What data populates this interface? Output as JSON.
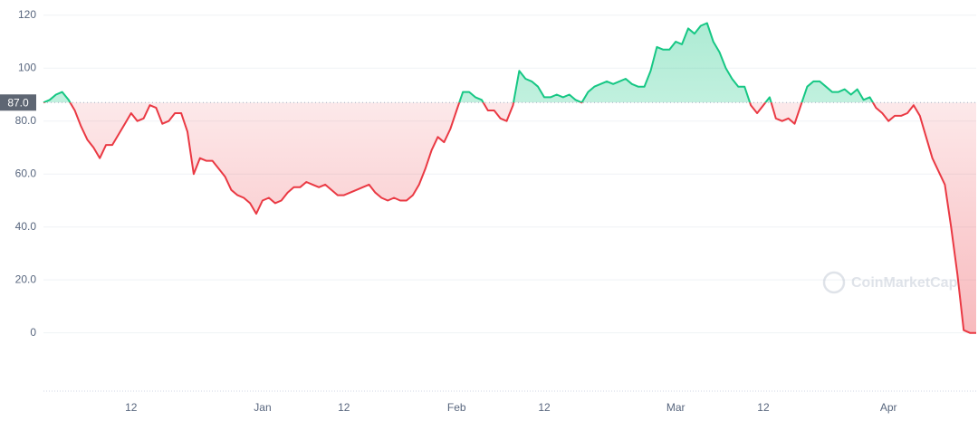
{
  "chart_data": {
    "type": "baseline-line",
    "categories": [
      null,
      null,
      null,
      null,
      null,
      null,
      null,
      null,
      null,
      null,
      null,
      null,
      null,
      null,
      "12",
      null,
      null,
      null,
      null,
      null,
      null,
      null,
      null,
      null,
      null,
      null,
      null,
      null,
      null,
      null,
      null,
      null,
      null,
      null,
      null,
      "Jan",
      null,
      null,
      null,
      null,
      null,
      null,
      null,
      null,
      null,
      null,
      null,
      null,
      "12",
      null,
      null,
      null,
      null,
      null,
      null,
      null,
      null,
      null,
      null,
      null,
      null,
      null,
      null,
      null,
      null,
      null,
      "Feb",
      null,
      null,
      null,
      null,
      null,
      null,
      null,
      null,
      null,
      null,
      null,
      null,
      null,
      "12",
      null,
      null,
      null,
      null,
      null,
      null,
      null,
      null,
      null,
      null,
      null,
      null,
      null,
      null,
      null,
      null,
      null,
      null,
      null,
      null,
      "Mar",
      null,
      null,
      null,
      null,
      null,
      null,
      null,
      null,
      null,
      null,
      null,
      null,
      null,
      "12",
      null,
      null,
      null,
      null,
      null,
      null,
      null,
      null,
      null,
      null,
      null,
      null,
      null,
      null,
      null,
      null,
      null,
      null,
      null,
      "Apr",
      null,
      null,
      null,
      null,
      null,
      null,
      null,
      null,
      null,
      null,
      null,
      null,
      null,
      null
    ],
    "values": [
      87,
      88,
      90,
      91,
      88,
      84,
      78,
      73,
      70,
      66,
      71,
      71,
      75,
      79,
      83,
      80,
      81,
      86,
      85,
      79,
      80,
      83,
      83,
      76,
      60,
      66,
      65,
      65,
      62,
      59,
      54,
      52,
      51,
      49,
      45,
      50,
      51,
      49,
      50,
      53,
      55,
      55,
      57,
      56,
      55,
      56,
      54,
      52,
      52,
      53,
      54,
      55,
      56,
      53,
      51,
      50,
      51,
      50,
      50,
      52,
      56,
      62,
      69,
      74,
      72,
      77,
      84,
      91,
      91,
      89,
      88,
      84,
      84,
      81,
      80,
      86,
      99,
      96,
      95,
      93,
      89,
      89,
      90,
      89,
      90,
      88,
      87,
      91,
      93,
      94,
      95,
      94,
      95,
      96,
      94,
      93,
      93,
      99,
      108,
      107,
      107,
      110,
      109,
      115,
      113,
      116,
      117,
      110,
      106,
      100,
      96,
      93,
      93,
      86,
      83,
      86,
      89,
      81,
      80,
      81,
      79,
      86,
      93,
      95,
      95,
      93,
      91,
      91,
      92,
      90,
      92,
      88,
      89,
      85,
      83,
      80,
      82,
      82,
      83,
      86,
      82,
      74,
      66,
      61,
      56,
      40,
      22,
      1,
      0,
      0
    ],
    "baseline": {
      "value": 87,
      "label": "87.0"
    },
    "colors": {
      "above": "#16c784",
      "below": "#ea3943"
    },
    "ylim": [
      -22,
      123
    ],
    "yticks": [
      0,
      {
        "value": 20,
        "label": "20.0"
      },
      {
        "value": 40,
        "label": "40.0"
      },
      {
        "value": 60,
        "label": "60.0"
      },
      {
        "value": 80,
        "label": "80.0"
      },
      100,
      120
    ],
    "grid": true,
    "watermark": "CoinMarketCap"
  }
}
